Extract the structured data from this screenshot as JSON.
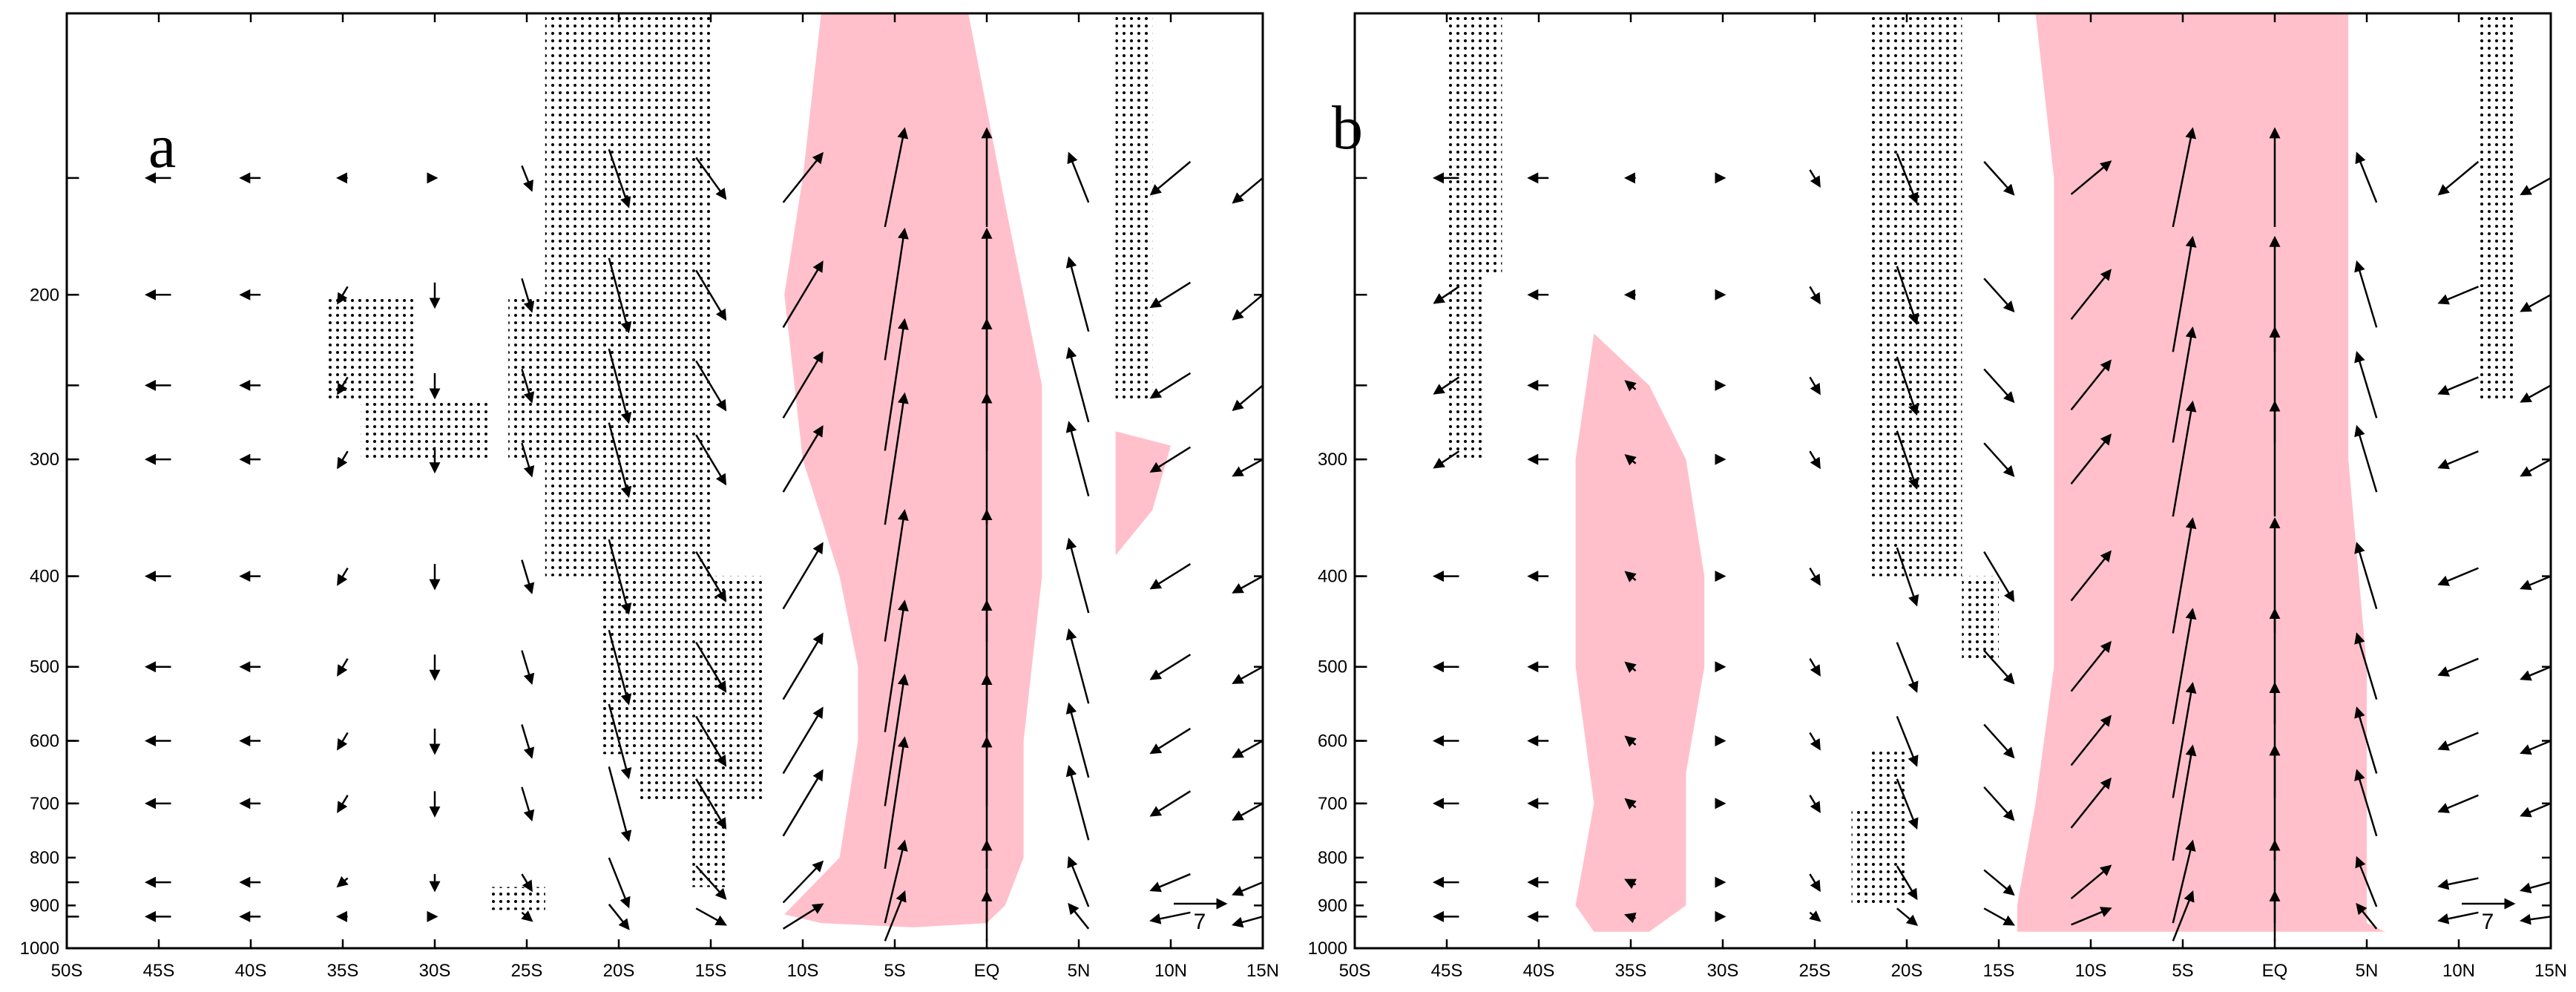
{
  "figure_title": "",
  "styles": {
    "shade_color": "#ffc0cb",
    "stipple_color": "#000000",
    "arrow_color": "#000000",
    "frame_color": "#000000"
  },
  "chart_data": [
    {
      "type": "vector",
      "panel": "a",
      "title": "",
      "xlabel": "",
      "ylabel": "",
      "x_ticks": [
        "50S",
        "45S",
        "40S",
        "35S",
        "30S",
        "25S",
        "20S",
        "15S",
        "10S",
        "5S",
        "EQ",
        "5N",
        "10N",
        "15N"
      ],
      "y_ticks": [
        "200",
        "300",
        "400",
        "500",
        "600",
        "700",
        "800",
        "900",
        "1000"
      ],
      "xlim": [
        -50,
        15
      ],
      "ylim_hPa": [
        1000,
        100
      ],
      "y_scale": "log",
      "grid": false,
      "reference_vector_label": "7",
      "reference_vector_position": "bottom-right",
      "shaded_regions": [
        {
          "lat_pressure": [
            [
              -9,
              100
            ],
            [
              -1,
              100
            ],
            [
              1,
              160
            ],
            [
              3,
              250
            ],
            [
              3,
              400
            ],
            [
              2,
              600
            ],
            [
              2,
              800
            ],
            [
              1,
              900
            ],
            [
              0,
              940
            ],
            [
              -4,
              950
            ],
            [
              -9,
              940
            ],
            [
              -11,
              920
            ],
            [
              -8,
              800
            ],
            [
              -7,
              600
            ],
            [
              -7,
              500
            ],
            [
              -8,
              400
            ],
            [
              -10,
              300
            ],
            [
              -11,
              200
            ],
            [
              -10,
              150
            ]
          ]
        },
        {
          "lat_pressure": [
            [
              7,
              280
            ],
            [
              10,
              290
            ],
            [
              9,
              340
            ],
            [
              7,
              380
            ]
          ]
        }
      ],
      "stipple_regions": [
        {
          "lat_range": [
            -36,
            -31
          ],
          "p_range": [
            200,
            260
          ]
        },
        {
          "lat_range": [
            -34,
            -27
          ],
          "p_range": [
            260,
            300
          ]
        },
        {
          "lat_range": [
            -26,
            -18
          ],
          "p_range": [
            200,
            300
          ]
        },
        {
          "lat_range": [
            -24,
            -15
          ],
          "p_range": [
            100,
            400
          ]
        },
        {
          "lat_range": [
            -21,
            -12
          ],
          "p_range": [
            400,
            620
          ]
        },
        {
          "lat_range": [
            -19,
            -12
          ],
          "p_range": [
            620,
            700
          ]
        },
        {
          "lat_range": [
            -16,
            -14
          ],
          "p_range": [
            700,
            860
          ]
        },
        {
          "lat_range": [
            -27,
            -24
          ],
          "p_range": [
            860,
            910
          ]
        },
        {
          "lat_range": [
            7,
            9
          ],
          "p_range": [
            100,
            260
          ]
        }
      ],
      "wind_field": {
        "levels_hPa": [
          150,
          200,
          250,
          300,
          400,
          500,
          600,
          700,
          850,
          925
        ],
        "lats": [
          -50,
          -45,
          -40,
          -35,
          -30,
          -25,
          -20,
          -15,
          -10,
          -5,
          0,
          5,
          10,
          15
        ],
        "u": [
          [
            -1.5,
            -1.5,
            -1.2,
            -0.6,
            0,
            0.6,
            1.2,
            1.8,
            2.4,
            1.2,
            0,
            -1.2,
            -2.4,
            -3.6
          ],
          [
            -1.5,
            -1.5,
            -1.2,
            -0.6,
            0,
            0.6,
            1.2,
            1.8,
            2.4,
            1.2,
            0,
            -1.2,
            -2.4,
            -3.6
          ],
          [
            -1.5,
            -1.5,
            -1.2,
            -0.6,
            0,
            0.6,
            1.2,
            1.8,
            2.4,
            1.2,
            0,
            -1.2,
            -2.4,
            -3.6
          ],
          [
            -1.5,
            -1.5,
            -1.2,
            -0.6,
            0,
            0.6,
            1.2,
            1.8,
            2.4,
            1.2,
            0,
            -1.2,
            -2.4,
            -3.6
          ],
          [
            -1.5,
            -1.5,
            -1.2,
            -0.6,
            0,
            0.6,
            1.2,
            1.8,
            2.4,
            1.2,
            0,
            -1.2,
            -2.4,
            -3.6
          ],
          [
            -1.5,
            -1.5,
            -1.2,
            -0.6,
            0,
            0.6,
            1.2,
            1.8,
            2.4,
            1.2,
            0,
            -1.2,
            -2.4,
            -3.6
          ],
          [
            -1.5,
            -1.5,
            -1.2,
            -0.6,
            0,
            0.6,
            1.2,
            1.8,
            2.4,
            1.2,
            0,
            -1.2,
            -2.4,
            -3.6
          ],
          [
            -1.5,
            -1.5,
            -1.2,
            -0.6,
            0,
            0.6,
            1.2,
            1.8,
            2.4,
            1.2,
            0,
            -1.2,
            -2.4,
            -3.6
          ],
          [
            -1.5,
            -1.5,
            -1.2,
            -0.6,
            0,
            0.6,
            1.2,
            1.8,
            2.4,
            1.2,
            0,
            -1.2,
            -2.4,
            -3.6
          ],
          [
            -1.5,
            -1.5,
            -1.2,
            -0.6,
            0,
            0.6,
            1.2,
            1.8,
            2.4,
            1.2,
            0,
            -1.2,
            -2.4,
            -3.6
          ]
        ],
        "w": [
          [
            0,
            0,
            0,
            0,
            0,
            -1.5,
            -3.5,
            -2.5,
            3,
            6,
            6,
            3,
            -2,
            -3
          ],
          [
            0,
            0,
            0,
            -1,
            -1.5,
            -2,
            -4.5,
            -3,
            4,
            8,
            8,
            4.5,
            -1.5,
            -3
          ],
          [
            0,
            0,
            0,
            -1,
            -1.5,
            -2,
            -4.5,
            -3,
            4,
            8,
            8,
            4.5,
            -1.5,
            -3
          ],
          [
            0,
            0,
            0,
            -1,
            -1.5,
            -2,
            -4.5,
            -3,
            4,
            8,
            8,
            4.5,
            -1.5,
            -2
          ],
          [
            0,
            0,
            0,
            -1,
            -1.5,
            -2,
            -4.5,
            -3,
            4,
            8,
            8,
            4.5,
            -1.5,
            -2
          ],
          [
            0,
            0,
            0,
            -1,
            -1.5,
            -2,
            -4.5,
            -3,
            4,
            8,
            8,
            4.5,
            -1.5,
            -2
          ],
          [
            0,
            0,
            0,
            -1,
            -1.5,
            -2,
            -4.5,
            -3,
            4,
            8,
            8,
            4.5,
            -1.5,
            -2
          ],
          [
            0,
            0,
            0,
            -1,
            -1.5,
            -2,
            -4.5,
            -3,
            4,
            8,
            8,
            4.5,
            -1.5,
            -2
          ],
          [
            0,
            0,
            0,
            -0.5,
            -1,
            -1,
            -3,
            -2,
            2.5,
            5,
            5,
            3,
            -1,
            -1.5
          ],
          [
            0,
            0,
            0,
            0,
            0,
            -0.5,
            -1.5,
            -1,
            1.5,
            3,
            3,
            1.5,
            -0.5,
            -1
          ]
        ]
      }
    },
    {
      "type": "vector",
      "panel": "b",
      "title": "",
      "xlabel": "",
      "ylabel": "",
      "x_ticks": [
        "50S",
        "45S",
        "40S",
        "35S",
        "30S",
        "25S",
        "20S",
        "15S",
        "10S",
        "5S",
        "EQ",
        "5N",
        "10N",
        "15N"
      ],
      "y_ticks": [
        "300",
        "400",
        "500",
        "600",
        "700",
        "800",
        "900",
        "1000"
      ],
      "xlim": [
        -50,
        15
      ],
      "ylim_hPa": [
        1000,
        100
      ],
      "y_scale": "log",
      "grid": false,
      "reference_vector_label": "7",
      "reference_vector_position": "bottom-right",
      "shaded_regions": [
        {
          "lat_pressure": [
            [
              -37,
              220
            ],
            [
              -34,
              250
            ],
            [
              -32,
              300
            ],
            [
              -31,
              400
            ],
            [
              -31,
              500
            ],
            [
              -32,
              650
            ],
            [
              -32,
              900
            ],
            [
              -34,
              960
            ],
            [
              -37,
              960
            ],
            [
              -38,
              900
            ],
            [
              -37,
              700
            ],
            [
              -38,
              500
            ],
            [
              -38,
              300
            ]
          ]
        },
        {
          "lat_pressure": [
            [
              -13,
              100
            ],
            [
              4,
              100
            ],
            [
              4,
              300
            ],
            [
              5,
              500
            ],
            [
              5,
              800
            ],
            [
              5,
              940
            ],
            [
              6,
              960
            ],
            [
              -14,
              960
            ],
            [
              -14,
              900
            ],
            [
              -13,
              700
            ],
            [
              -12,
              500
            ],
            [
              -12,
              300
            ],
            [
              -12,
              150
            ]
          ]
        }
      ],
      "stipple_regions": [
        {
          "lat_range": [
            -45,
            -42
          ],
          "p_range": [
            100,
            190
          ]
        },
        {
          "lat_range": [
            -45,
            -43
          ],
          "p_range": [
            190,
            300
          ]
        },
        {
          "lat_range": [
            -22,
            -17
          ],
          "p_range": [
            100,
            400
          ]
        },
        {
          "lat_range": [
            -17,
            -15
          ],
          "p_range": [
            400,
            490
          ]
        },
        {
          "lat_range": [
            -22,
            -20
          ],
          "p_range": [
            610,
            710
          ]
        },
        {
          "lat_range": [
            -23,
            -20
          ],
          "p_range": [
            710,
            900
          ]
        },
        {
          "lat_range": [
            11,
            13
          ],
          "p_range": [
            100,
            260
          ]
        }
      ],
      "wind_field": {
        "levels_hPa": [
          150,
          200,
          250,
          300,
          400,
          500,
          600,
          700,
          850,
          925
        ],
        "lats": [
          -50,
          -45,
          -40,
          -35,
          -30,
          -25,
          -20,
          -15,
          -10,
          -5,
          0,
          5,
          10,
          15
        ],
        "u": [
          [
            -1.5,
            -1.5,
            -1.2,
            -0.6,
            0,
            0.6,
            1.2,
            1.8,
            2.4,
            1.2,
            0,
            -1.2,
            -2.4,
            -3.6
          ],
          [
            -1.5,
            -1.5,
            -1.2,
            -0.6,
            0,
            0.6,
            1.2,
            1.8,
            2.4,
            1.2,
            0,
            -1.2,
            -2.4,
            -3.6
          ],
          [
            -1.5,
            -1.5,
            -1.2,
            -0.6,
            0,
            0.6,
            1.2,
            1.8,
            2.4,
            1.2,
            0,
            -1.2,
            -2.4,
            -3.6
          ],
          [
            -1.5,
            -1.5,
            -1.2,
            -0.6,
            0,
            0.6,
            1.2,
            1.8,
            2.4,
            1.2,
            0,
            -1.2,
            -2.4,
            -3.6
          ],
          [
            -1.5,
            -1.5,
            -1.2,
            -0.6,
            0,
            0.6,
            1.2,
            1.8,
            2.4,
            1.2,
            0,
            -1.2,
            -2.4,
            -3.6
          ],
          [
            -1.5,
            -1.5,
            -1.2,
            -0.6,
            0,
            0.6,
            1.2,
            1.8,
            2.4,
            1.2,
            0,
            -1.2,
            -2.4,
            -3.6
          ],
          [
            -1.5,
            -1.5,
            -1.2,
            -0.6,
            0,
            0.6,
            1.2,
            1.8,
            2.4,
            1.2,
            0,
            -1.2,
            -2.4,
            -3.6
          ],
          [
            -1.5,
            -1.5,
            -1.2,
            -0.6,
            0,
            0.6,
            1.2,
            1.8,
            2.4,
            1.2,
            0,
            -1.2,
            -2.4,
            -3.6
          ],
          [
            -1.5,
            -1.5,
            -1.2,
            -0.6,
            0,
            0.6,
            1.2,
            1.8,
            2.4,
            1.2,
            0,
            -1.2,
            -2.4,
            -3.6
          ],
          [
            -1.5,
            -1.5,
            -1.2,
            -0.6,
            0,
            0.6,
            1.2,
            1.8,
            2.4,
            1.2,
            0,
            -1.2,
            -2.4,
            -3.6
          ]
        ],
        "w": [
          [
            0,
            0,
            0,
            0,
            0,
            -1,
            -3,
            -2,
            2,
            6,
            6,
            3,
            -2,
            -2
          ],
          [
            0,
            -1,
            0,
            0,
            0,
            -1,
            -3.5,
            -2,
            3,
            7,
            7,
            4,
            -1,
            -2
          ],
          [
            0,
            -1,
            0,
            0.5,
            0,
            -1,
            -3.5,
            -2,
            3,
            7,
            7,
            4,
            -1,
            -2
          ],
          [
            0,
            -1,
            0,
            0.5,
            0,
            -1,
            -3.5,
            -2,
            3,
            7,
            7,
            4,
            -1,
            -2
          ],
          [
            0,
            0,
            0,
            0.5,
            0,
            -1,
            -3.5,
            -3,
            3,
            7,
            7,
            4,
            -1,
            -1.5
          ],
          [
            0,
            0,
            0,
            0.5,
            0,
            -1,
            -3,
            -2,
            3,
            7,
            7,
            4,
            -1,
            -1.5
          ],
          [
            0,
            0,
            0,
            0.5,
            0,
            -1,
            -3,
            -2,
            3,
            7,
            7,
            4,
            -1,
            -1.5
          ],
          [
            0,
            0,
            0,
            0.5,
            0,
            -1,
            -3,
            -2,
            3,
            7,
            7,
            4,
            -1,
            -1.5
          ],
          [
            0,
            0,
            0,
            0.3,
            0,
            -1,
            -2,
            -1.5,
            2,
            5,
            5,
            3,
            -0.5,
            -1
          ],
          [
            0,
            0,
            0,
            0.2,
            0,
            -0.5,
            -1,
            -1,
            1,
            3,
            3,
            1.5,
            -0.5,
            -0.5
          ]
        ]
      }
    }
  ]
}
